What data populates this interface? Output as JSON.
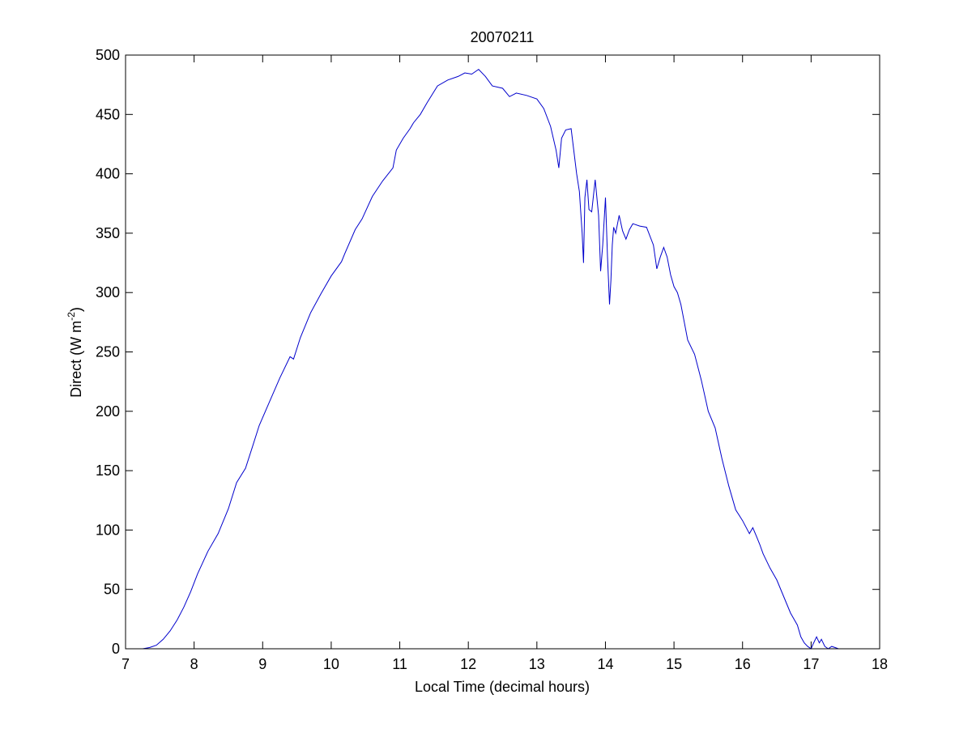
{
  "chart_data": {
    "type": "line",
    "title": "20070211",
    "xlabel": "Local Time (decimal hours)",
    "ylabel": {
      "main": "Direct (W m",
      "superscript": "-2",
      "close": ")"
    },
    "xlim": [
      7,
      18
    ],
    "ylim": [
      0,
      500
    ],
    "xticks": [
      7,
      8,
      9,
      10,
      11,
      12,
      13,
      14,
      15,
      16,
      17,
      18
    ],
    "yticks": [
      0,
      50,
      100,
      150,
      200,
      250,
      300,
      350,
      400,
      450,
      500
    ],
    "grid": false,
    "series": [
      {
        "color": "#0000cc",
        "x": [
          7.25,
          7.35,
          7.45,
          7.55,
          7.65,
          7.75,
          7.85,
          7.95,
          8.05,
          8.2,
          8.35,
          8.5,
          8.62,
          8.75,
          8.85,
          8.95,
          9.1,
          9.25,
          9.4,
          9.45,
          9.55,
          9.7,
          9.85,
          10.0,
          10.15,
          10.2,
          10.35,
          10.45,
          10.6,
          10.75,
          10.9,
          10.95,
          11.05,
          11.15,
          11.2,
          11.3,
          11.4,
          11.55,
          11.7,
          11.85,
          11.95,
          12.05,
          12.15,
          12.25,
          12.35,
          12.5,
          12.6,
          12.7,
          12.85,
          13.0,
          13.1,
          13.2,
          13.28,
          13.32,
          13.36,
          13.42,
          13.5,
          13.58,
          13.62,
          13.66,
          13.68,
          13.7,
          13.73,
          13.76,
          13.8,
          13.85,
          13.9,
          13.93,
          13.96,
          14.0,
          14.03,
          14.06,
          14.08,
          14.1,
          14.12,
          14.15,
          14.2,
          14.25,
          14.3,
          14.35,
          14.4,
          14.5,
          14.6,
          14.7,
          14.75,
          14.8,
          14.85,
          14.9,
          14.95,
          15.0,
          15.05,
          15.1,
          15.15,
          15.2,
          15.3,
          15.4,
          15.5,
          15.6,
          15.7,
          15.8,
          15.9,
          16.0,
          16.1,
          16.15,
          16.2,
          16.25,
          16.3,
          16.4,
          16.5,
          16.6,
          16.7,
          16.8,
          16.85,
          16.9,
          16.95,
          17.0,
          17.03,
          17.08,
          17.12,
          17.15,
          17.2,
          17.25,
          17.3,
          17.35,
          17.4,
          17.5,
          17.6
        ],
        "y": [
          0,
          1,
          3,
          8,
          15,
          24,
          35,
          48,
          63,
          82,
          97,
          118,
          140,
          152,
          170,
          188,
          208,
          228,
          246,
          244,
          262,
          283,
          299,
          314,
          326,
          333,
          353,
          362,
          381,
          394,
          405,
          420,
          430,
          438,
          443,
          450,
          460,
          474,
          479,
          482,
          485,
          484,
          488,
          482,
          474,
          472,
          465,
          468,
          466,
          463,
          455,
          440,
          420,
          405,
          430,
          437,
          438,
          400,
          385,
          350,
          325,
          380,
          395,
          370,
          368,
          395,
          365,
          318,
          340,
          380,
          330,
          290,
          310,
          340,
          355,
          350,
          365,
          352,
          345,
          353,
          358,
          356,
          355,
          340,
          320,
          330,
          338,
          330,
          315,
          305,
          300,
          290,
          275,
          260,
          248,
          226,
          200,
          186,
          160,
          137,
          117,
          108,
          97,
          102,
          95,
          88,
          80,
          68,
          58,
          44,
          30,
          20,
          10,
          5,
          2,
          0,
          4,
          10,
          5,
          8,
          2,
          0,
          2,
          1,
          0,
          0,
          0
        ]
      }
    ]
  }
}
